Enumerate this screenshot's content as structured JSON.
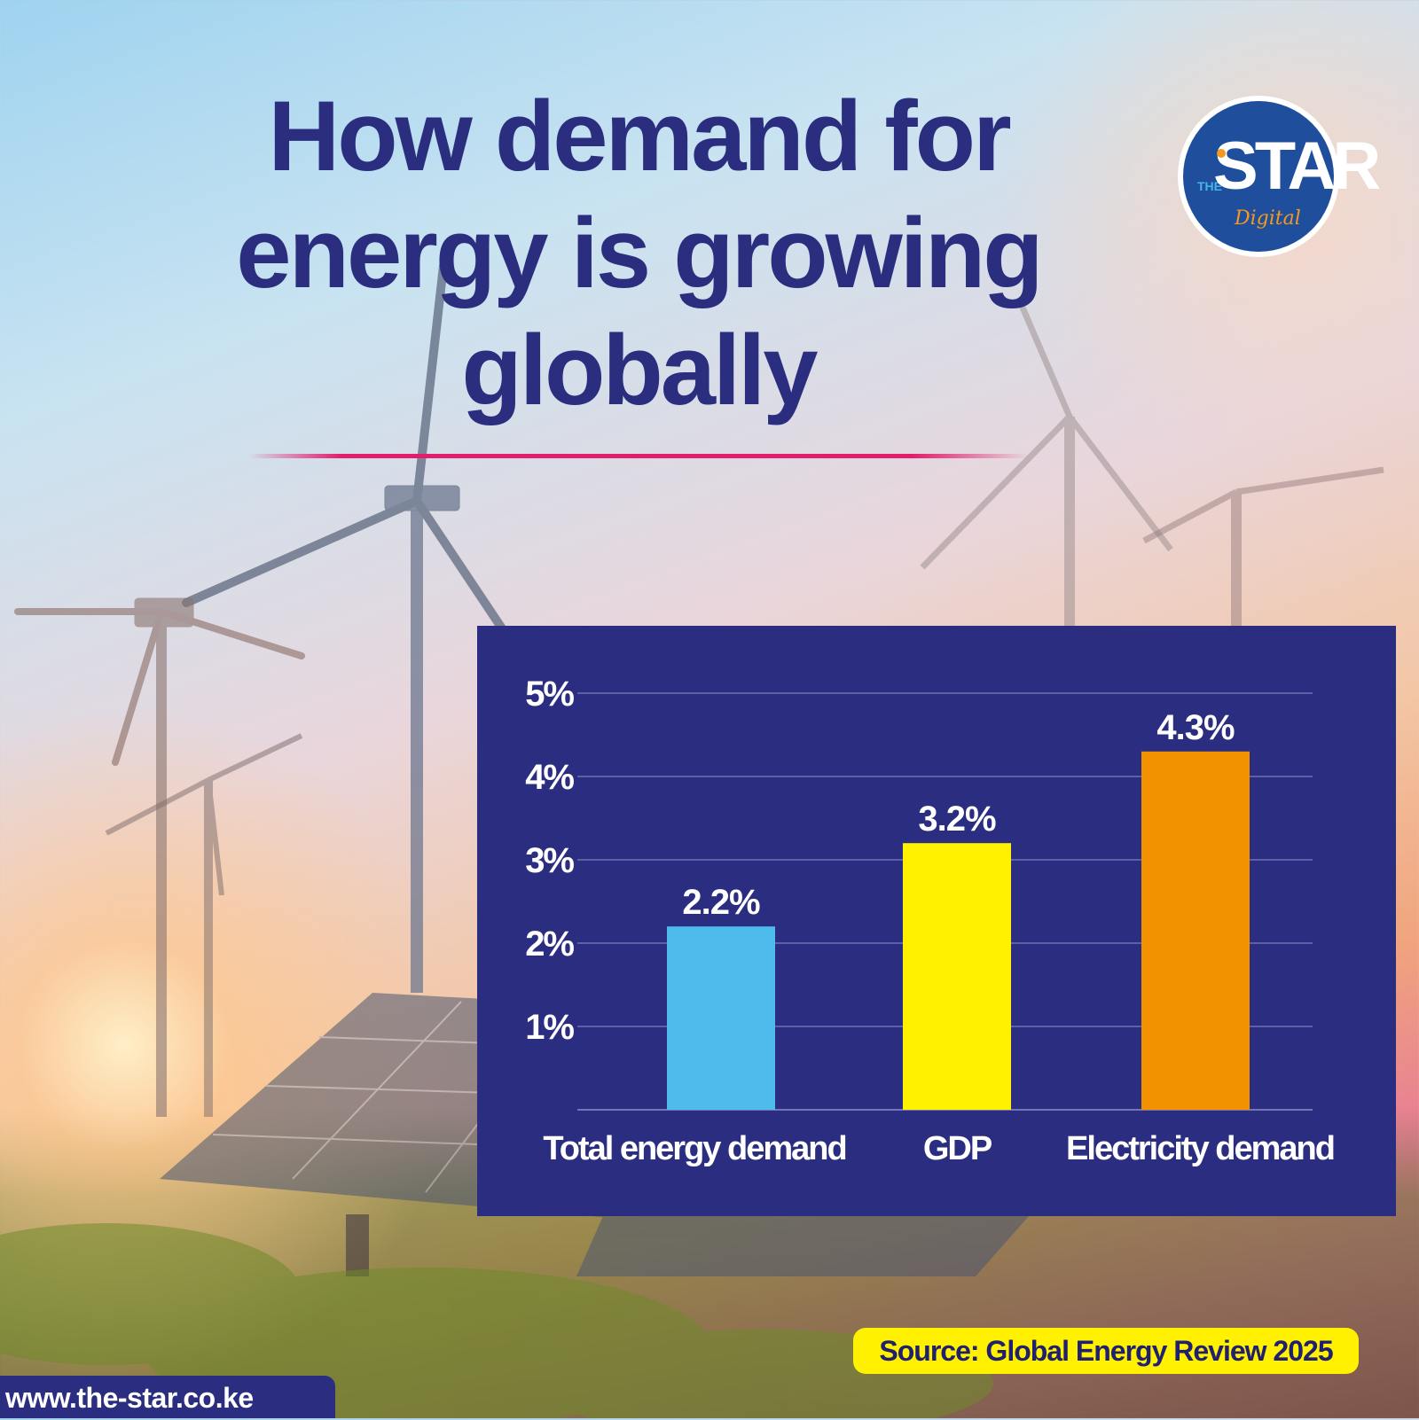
{
  "title": "How demand for energy is growing globally",
  "logo": {
    "the": "THE",
    "star": "STAR",
    "digital": "Digital"
  },
  "source": "Source: Global Energy Review 2025",
  "url": "www.the-star.co.ke",
  "colors": {
    "title": "#2b2d7f",
    "accent_rule": "#e21d6c",
    "panel": "#2b2d80",
    "source_pill": "#fff100"
  },
  "chart_data": {
    "type": "bar",
    "title": "",
    "xlabel": "",
    "ylabel": "",
    "categories": [
      "Total energy demand",
      "GDP",
      "Electricity demand"
    ],
    "values": [
      2.2,
      3.2,
      4.3
    ],
    "value_labels": [
      "2.2%",
      "3.2%",
      "4.3%"
    ],
    "bar_colors": [
      "#4dbcec",
      "#fff100",
      "#f39200"
    ],
    "ylim": [
      0,
      5
    ],
    "yticks": [
      1,
      2,
      3,
      4,
      5
    ],
    "ytick_labels": [
      "1%",
      "2%",
      "3%",
      "4%",
      "5%"
    ],
    "grid": true,
    "legend": "none"
  }
}
